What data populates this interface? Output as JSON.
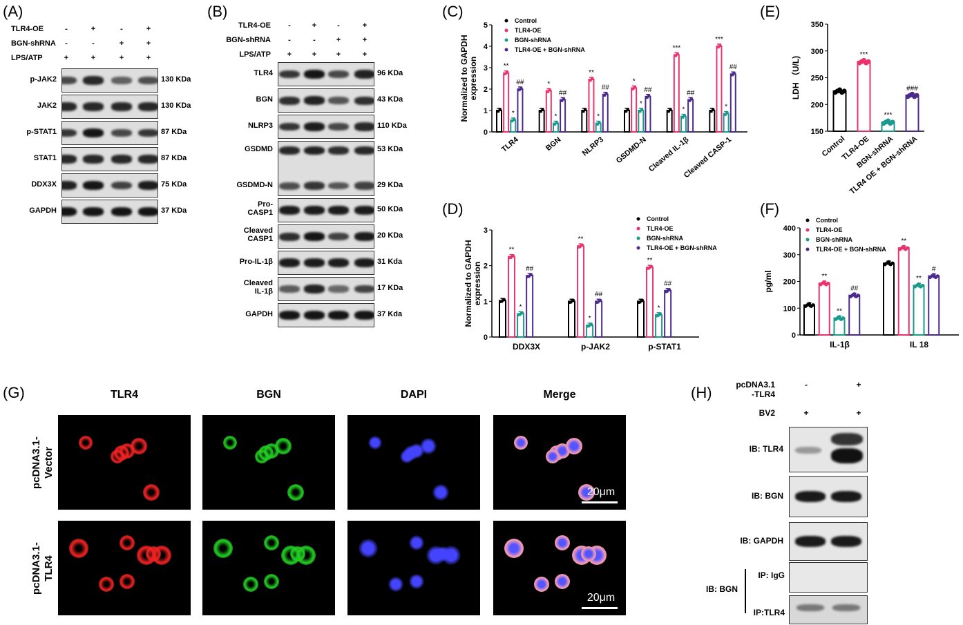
{
  "panels": {
    "A": "(A)",
    "B": "(B)",
    "C": "(C)",
    "D": "(D)",
    "E": "(E)",
    "F": "(F)",
    "G": "(G)",
    "H": "(H)"
  },
  "panelA": {
    "conditions": [
      {
        "label": "TLR4-OE",
        "signs": [
          "-",
          "+",
          "-",
          "+"
        ]
      },
      {
        "label": "BGN-shRNA",
        "signs": [
          "-",
          "-",
          "+",
          "+"
        ]
      },
      {
        "label": "LPS/ATP",
        "signs": [
          "+",
          "+",
          "+",
          "+"
        ]
      }
    ],
    "rows": [
      {
        "label": "p-JAK2",
        "kda": "130 KDa",
        "bands": [
          0.55,
          0.8,
          0.35,
          0.5
        ]
      },
      {
        "label": "JAK2",
        "kda": "130 KDa",
        "bands": [
          0.8,
          0.8,
          0.8,
          0.8
        ]
      },
      {
        "label": "p-STAT1",
        "kda": "87 KDa",
        "bands": [
          0.7,
          0.95,
          0.55,
          0.7
        ]
      },
      {
        "label": "STAT1",
        "kda": "87 KDa",
        "bands": [
          0.8,
          0.8,
          0.8,
          0.8
        ]
      },
      {
        "label": "DDX3X",
        "kda": "75 KDa",
        "bands": [
          0.85,
          0.95,
          0.6,
          0.9
        ]
      },
      {
        "label": "GAPDH",
        "kda": "37 KDa",
        "bands": [
          0.95,
          0.95,
          0.95,
          0.95
        ]
      }
    ]
  },
  "panelB": {
    "conditions": [
      {
        "label": "TLR4-OE",
        "signs": [
          "-",
          "+",
          "-",
          "+"
        ]
      },
      {
        "label": "BGN-shRNA",
        "signs": [
          "-",
          "-",
          "+",
          "+"
        ]
      },
      {
        "label": "LPS/ATP",
        "signs": [
          "+",
          "+",
          "+",
          "+"
        ]
      }
    ],
    "rows": [
      {
        "label": "TLR4",
        "kda": "96 KDa",
        "bands": [
          0.7,
          0.95,
          0.55,
          0.85
        ]
      },
      {
        "label": "BGN",
        "kda": "43 KDa",
        "bands": [
          0.75,
          0.85,
          0.45,
          0.75
        ]
      },
      {
        "label": "NLRP3",
        "kda": "110 KDa",
        "bands": [
          0.7,
          0.9,
          0.55,
          0.8
        ]
      },
      {
        "label": "GSDMD",
        "label2": "GSDMD-N",
        "kda": "53 KDa",
        "kda2": "29 KDa",
        "bands": [
          0.8,
          0.85,
          0.75,
          0.8
        ],
        "bands2": [
          0.5,
          0.7,
          0.45,
          0.6
        ]
      },
      {
        "label": "Pro-\nCASP1",
        "kda": "50 KDa",
        "bands": [
          0.9,
          0.9,
          0.9,
          0.9
        ]
      },
      {
        "label": "Cleaved\nCASP1",
        "kda": "20 KDa",
        "bands": [
          0.75,
          0.95,
          0.6,
          0.9
        ]
      },
      {
        "label": "Pro-IL-1β",
        "kda": "31 Kda",
        "bands": [
          0.9,
          0.9,
          0.9,
          0.9
        ]
      },
      {
        "label": "Cleaved\nIL-1β",
        "kda": "17 KDa",
        "bands": [
          0.4,
          0.85,
          0.3,
          0.6
        ]
      },
      {
        "label": "GAPDH",
        "kda": "37 Kda",
        "bands": [
          0.95,
          0.95,
          0.95,
          0.95
        ]
      }
    ]
  },
  "colors": {
    "control": "#000000",
    "tlr4oe": "#e8336d",
    "bgnsh": "#1a9a8c",
    "combo": "#4b2a8c"
  },
  "chart_data": [
    {
      "id": "C",
      "type": "bar",
      "ylabel": "Normalized to GAPDH\nexpression",
      "ylim": [
        0,
        5
      ],
      "yticks": [
        0,
        1,
        2,
        3,
        4,
        5
      ],
      "legend": [
        "Control",
        "TLR4-OE",
        "BGN-shRNA",
        "TLR4-OE + BGN-shRNA"
      ],
      "categories": [
        "TLR4",
        "BGN",
        "NLRP3",
        "GSDMD-N",
        "Cleaved IL-1β",
        "Cleaved CASP-1"
      ],
      "series": [
        {
          "name": "Control",
          "values": [
            1,
            1,
            1,
            1,
            1,
            1
          ]
        },
        {
          "name": "TLR4-OE",
          "values": [
            2.75,
            1.92,
            2.45,
            2.05,
            3.6,
            4.0
          ]
        },
        {
          "name": "BGN-shRNA",
          "values": [
            0.55,
            0.4,
            0.4,
            1.0,
            0.72,
            0.85
          ]
        },
        {
          "name": "TLR4-OE + BGN-shRNA",
          "values": [
            2.0,
            1.5,
            1.75,
            1.65,
            1.5,
            2.7
          ]
        }
      ],
      "annotations": [
        [
          "",
          "**",
          "*",
          "##"
        ],
        [
          "",
          "*",
          "*",
          "##"
        ],
        [
          "",
          "**",
          "*",
          "##"
        ],
        [
          "",
          "*",
          "*",
          "##"
        ],
        [
          "",
          "***",
          "*",
          "##"
        ],
        [
          "",
          "***",
          "*",
          "##"
        ]
      ]
    },
    {
      "id": "D",
      "type": "bar",
      "ylabel": "Normalized to GAPDH\nexpression",
      "ylim": [
        0,
        3
      ],
      "yticks": [
        0,
        1,
        2,
        3
      ],
      "legend": [
        "Control",
        "TLR4-OE",
        "BGN-shRNA",
        "TLR4-OE + BGN-shRNA"
      ],
      "categories": [
        "DDX3X",
        "p-JAK2",
        "p-STAT1"
      ],
      "series": [
        {
          "name": "Control",
          "values": [
            1.02,
            1.0,
            1.0
          ]
        },
        {
          "name": "TLR4-OE",
          "values": [
            2.25,
            2.55,
            1.95
          ]
        },
        {
          "name": "BGN-shRNA",
          "values": [
            0.65,
            0.33,
            0.62
          ]
        },
        {
          "name": "TLR4-OE + BGN-shRNA",
          "values": [
            1.72,
            1.0,
            1.3
          ]
        }
      ],
      "annotations": [
        [
          "",
          "**",
          "*",
          "##"
        ],
        [
          "",
          "**",
          "*",
          "##"
        ],
        [
          "",
          "**",
          "*",
          "##"
        ]
      ]
    },
    {
      "id": "E",
      "type": "bar",
      "ylabel": "LDH （U/L)",
      "ylim": [
        150,
        350
      ],
      "yticks": [
        150,
        200,
        250,
        300,
        350
      ],
      "categories": [
        "Control",
        "TLR4-OE",
        "BGN-shRNA",
        "TLR4 OE + BGN-shRNA"
      ],
      "values": [
        225,
        280,
        167,
        217
      ],
      "annotations": [
        "",
        "***",
        "***",
        "###"
      ]
    },
    {
      "id": "F",
      "type": "bar",
      "ylabel": "pg/ml",
      "ylim": [
        0,
        400
      ],
      "yticks": [
        0,
        100,
        200,
        300,
        400
      ],
      "legend": [
        "Control",
        "TLR4-OE",
        "BGN-shRNA",
        "TLR4-OE + BGN-shRNA"
      ],
      "categories": [
        "IL-1β",
        "IL 18"
      ],
      "series": [
        {
          "name": "Control",
          "values": [
            112,
            268
          ]
        },
        {
          "name": "TLR4-OE",
          "values": [
            193,
            325
          ]
        },
        {
          "name": "BGN-shRNA",
          "values": [
            63,
            185
          ]
        },
        {
          "name": "TLR4-OE + BGN-shRNA",
          "values": [
            148,
            220
          ]
        }
      ],
      "annotations": [
        [
          "",
          "**",
          "**",
          "##"
        ],
        [
          "",
          "**",
          "**",
          "#"
        ]
      ]
    }
  ],
  "panelG": {
    "columns": [
      "TLR4",
      "BGN",
      "DAPI",
      "Merge"
    ],
    "rows": [
      "pcDNA3.1-\nVector",
      "pcDNA3.1-\nTLR4"
    ],
    "scalebar": "20μm"
  },
  "panelH": {
    "cond1": "pcDNA3.1\n-TLR4",
    "cond1_signs": [
      "-",
      "+"
    ],
    "cond2": "BV2",
    "cond2_signs": [
      "+",
      "+"
    ],
    "rows": [
      "IB: TLR4",
      "IB: BGN",
      "IB: GAPDH"
    ],
    "ip_group": "IB: BGN",
    "ip_rows": [
      "IP: IgG",
      "IP:TLR4"
    ]
  }
}
